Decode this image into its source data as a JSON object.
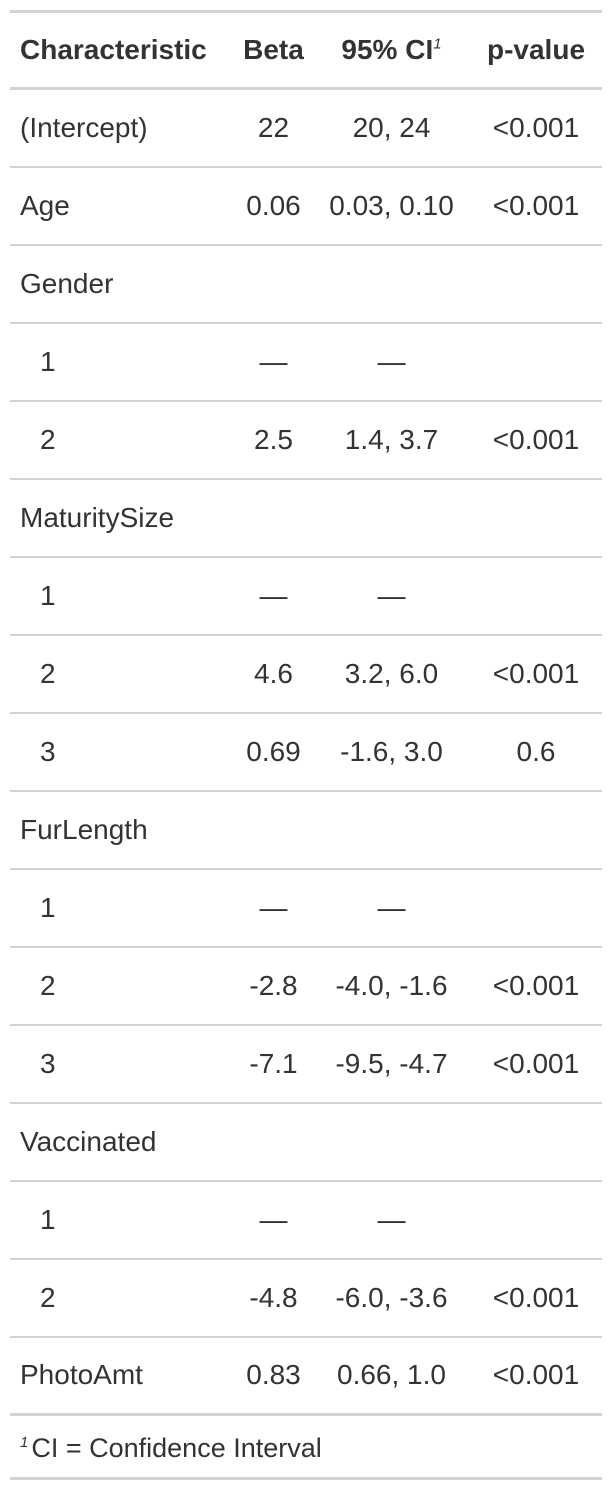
{
  "table": {
    "headers": {
      "characteristic": "Characteristic",
      "beta": "Beta",
      "ci": "95% CI",
      "ci_footnote_mark": "1",
      "pvalue": "p-value"
    },
    "rows": [
      {
        "label": "(Intercept)",
        "indent": false,
        "beta": "22",
        "ci": "20, 24",
        "p": "<0.001"
      },
      {
        "label": "Age",
        "indent": false,
        "beta": "0.06",
        "ci": "0.03, 0.10",
        "p": "<0.001"
      },
      {
        "label": "Gender",
        "indent": false,
        "beta": "",
        "ci": "",
        "p": ""
      },
      {
        "label": "1",
        "indent": true,
        "beta": "—",
        "ci": "—",
        "p": ""
      },
      {
        "label": "2",
        "indent": true,
        "beta": "2.5",
        "ci": "1.4, 3.7",
        "p": "<0.001"
      },
      {
        "label": "MaturitySize",
        "indent": false,
        "beta": "",
        "ci": "",
        "p": ""
      },
      {
        "label": "1",
        "indent": true,
        "beta": "—",
        "ci": "—",
        "p": ""
      },
      {
        "label": "2",
        "indent": true,
        "beta": "4.6",
        "ci": "3.2, 6.0",
        "p": "<0.001"
      },
      {
        "label": "3",
        "indent": true,
        "beta": "0.69",
        "ci": "-1.6, 3.0",
        "p": "0.6"
      },
      {
        "label": "FurLength",
        "indent": false,
        "beta": "",
        "ci": "",
        "p": ""
      },
      {
        "label": "1",
        "indent": true,
        "beta": "—",
        "ci": "—",
        "p": ""
      },
      {
        "label": "2",
        "indent": true,
        "beta": "-2.8",
        "ci": "-4.0, -1.6",
        "p": "<0.001"
      },
      {
        "label": "3",
        "indent": true,
        "beta": "-7.1",
        "ci": "-9.5, -4.7",
        "p": "<0.001"
      },
      {
        "label": "Vaccinated",
        "indent": false,
        "beta": "",
        "ci": "",
        "p": ""
      },
      {
        "label": "1",
        "indent": true,
        "beta": "—",
        "ci": "—",
        "p": ""
      },
      {
        "label": "2",
        "indent": true,
        "beta": "-4.8",
        "ci": "-6.0, -3.6",
        "p": "<0.001"
      },
      {
        "label": "PhotoAmt",
        "indent": false,
        "beta": "0.83",
        "ci": "0.66, 1.0",
        "p": "<0.001"
      }
    ],
    "footnote": {
      "mark": "1",
      "text": "CI = Confidence Interval"
    }
  }
}
